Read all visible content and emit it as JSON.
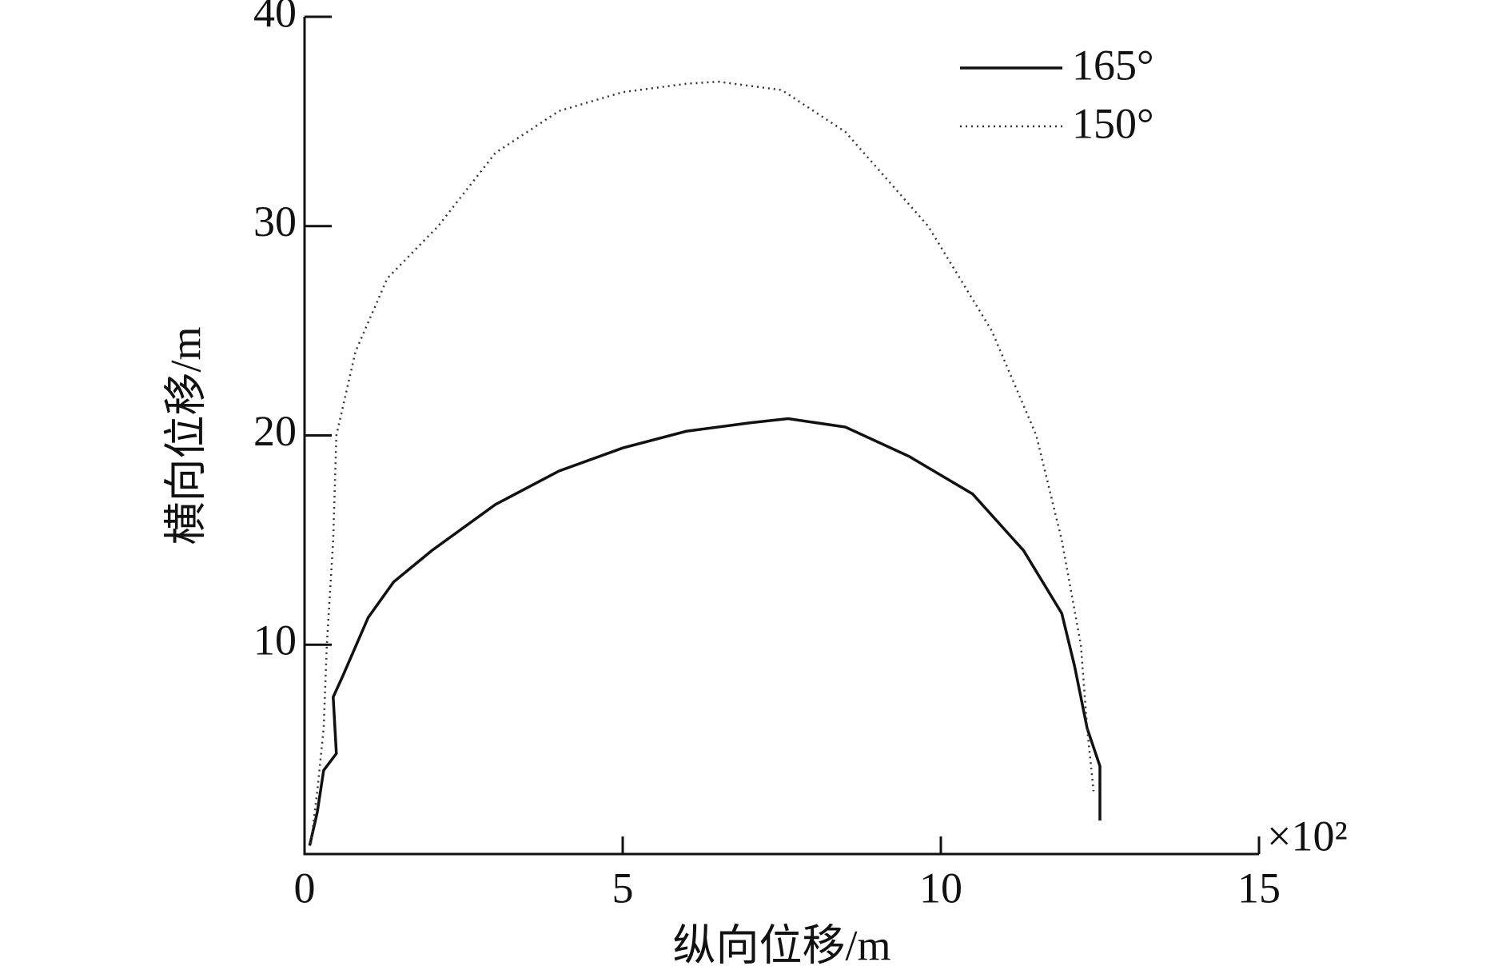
{
  "chart_data": {
    "type": "line",
    "xlabel": "纵向位移/m",
    "ylabel": "横向位移/m",
    "x_multiplier": "×10²",
    "xlim": [
      0,
      15
    ],
    "xticks": [
      0,
      5,
      10,
      15
    ],
    "ylim": [
      0,
      40
    ],
    "yticks": [
      10,
      20,
      30,
      40
    ],
    "legend": "upper right",
    "series": [
      {
        "name": "165°",
        "color": "#111111",
        "style": "solid",
        "x": [
          0.08,
          0.2,
          0.3,
          0.5,
          0.45,
          0.6,
          1.0,
          1.4,
          2,
          3,
          4,
          5,
          6,
          7,
          7.6,
          8.5,
          9.5,
          10.5,
          11.3,
          11.9,
          12.1,
          12.3,
          12.5,
          12.5
        ],
        "values": [
          0.4,
          2,
          4,
          4.8,
          7.5,
          8.5,
          11.3,
          13,
          14.5,
          16.7,
          18.3,
          19.4,
          20.2,
          20.6,
          20.8,
          20.4,
          19,
          17.2,
          14.5,
          11.5,
          9,
          6,
          4.2,
          1.6
        ]
      },
      {
        "name": "150°",
        "color": "#333333",
        "style": "dotted",
        "x": [
          0.1,
          0.2,
          0.3,
          0.35,
          0.45,
          0.5,
          0.8,
          1.3,
          2.1,
          3,
          4,
          5,
          6,
          6.5,
          7.5,
          8.5,
          9.8,
          10.8,
          11.5,
          11.9,
          12.2,
          12.3,
          12.4
        ],
        "values": [
          0.5,
          3,
          6,
          10,
          15,
          20,
          24,
          27.5,
          30,
          33.5,
          35.5,
          36.4,
          36.8,
          36.9,
          36.5,
          34.5,
          30,
          25,
          20,
          15,
          10,
          6,
          3
        ]
      }
    ]
  }
}
